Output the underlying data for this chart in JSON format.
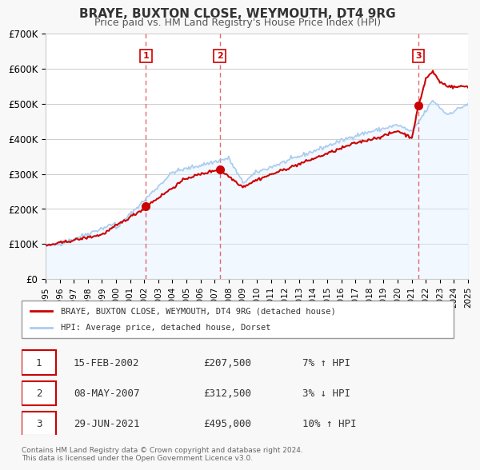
{
  "title": "BRAYE, BUXTON CLOSE, WEYMOUTH, DT4 9RG",
  "subtitle": "Price paid vs. HM Land Registry's House Price Index (HPI)",
  "ylabel": "",
  "xlabel": "",
  "ylim": [
    0,
    700000
  ],
  "yticks": [
    0,
    100000,
    200000,
    300000,
    400000,
    500000,
    600000,
    700000
  ],
  "ytick_labels": [
    "£0",
    "£100K",
    "£200K",
    "£300K",
    "£400K",
    "£500K",
    "£600K",
    "£700K"
  ],
  "x_start_year": 1995,
  "x_end_year": 2025,
  "sale_color": "#cc0000",
  "hpi_color": "#aaccee",
  "hpi_fill_color": "#ddeeff",
  "sale_points": [
    {
      "year": 2002.12,
      "value": 207500,
      "label": "1"
    },
    {
      "year": 2007.36,
      "value": 312500,
      "label": "2"
    },
    {
      "year": 2021.49,
      "value": 495000,
      "label": "3"
    }
  ],
  "vline_color": "#dd4444",
  "vline_style": "dashed",
  "legend_sale_label": "BRAYE, BUXTON CLOSE, WEYMOUTH, DT4 9RG (detached house)",
  "legend_hpi_label": "HPI: Average price, detached house, Dorset",
  "table_entries": [
    {
      "num": "1",
      "date": "15-FEB-2002",
      "price": "£207,500",
      "hpi": "7% ↑ HPI"
    },
    {
      "num": "2",
      "date": "08-MAY-2007",
      "price": "£312,500",
      "hpi": "3% ↓ HPI"
    },
    {
      "num": "3",
      "date": "29-JUN-2021",
      "price": "£495,000",
      "hpi": "10% ↑ HPI"
    }
  ],
  "footer": "Contains HM Land Registry data © Crown copyright and database right 2024.\nThis data is licensed under the Open Government Licence v3.0.",
  "background_color": "#f8f8f8",
  "plot_bg_color": "#ffffff"
}
